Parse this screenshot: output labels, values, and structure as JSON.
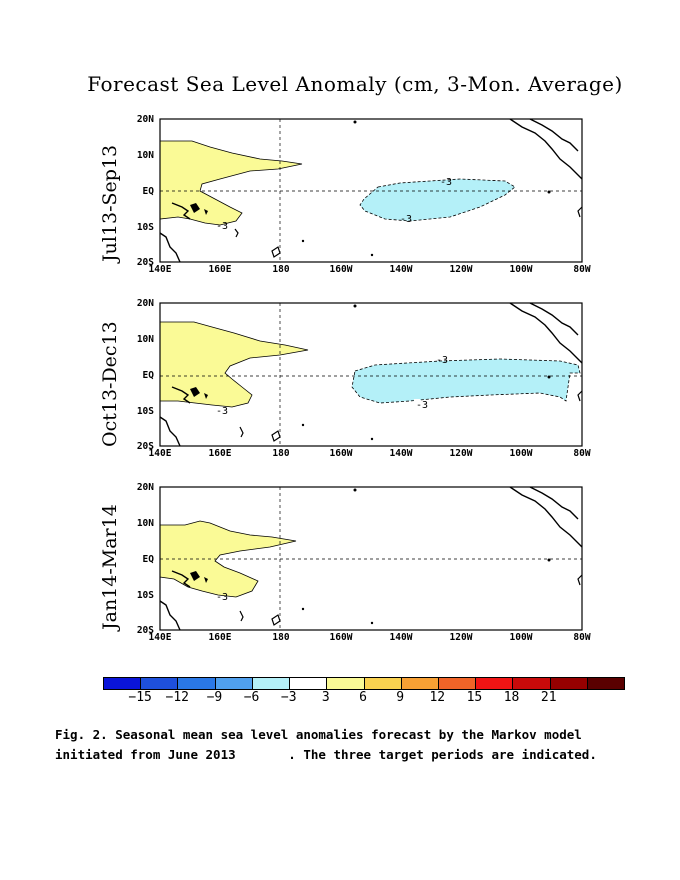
{
  "title": "Forecast Sea Level Anomaly (cm, 3-Mon. Average)",
  "y_ticks": [
    "20N",
    "10N",
    "EQ",
    "10S",
    "20S"
  ],
  "x_ticks": [
    "140E",
    "160E",
    "180",
    "160W",
    "140W",
    "120W",
    "100W",
    "80W"
  ],
  "panels": [
    {
      "label": "Jul13-Sep13"
    },
    {
      "label": "Oct13-Dec13"
    },
    {
      "label": "Jan14-Mar14"
    }
  ],
  "contour_label": "-3",
  "colorbar": {
    "colors": [
      "#0a14d8",
      "#1e50dc",
      "#2a78e6",
      "#50a0ee",
      "#b4f0f8",
      "#ffffff",
      "#fafa96",
      "#fad250",
      "#f7a034",
      "#f06428",
      "#f01414",
      "#c80a0a",
      "#960000",
      "#5a0000"
    ],
    "labels": [
      "-15",
      "-12",
      "-9",
      "-6",
      "-3",
      "3",
      "6",
      "9",
      "12",
      "15",
      "18",
      "21"
    ]
  },
  "caption": {
    "line1": "Fig. 2. Seasonal mean sea level anomalies forecast by the Markov model",
    "line2": "initiated from June 2013       . The three target periods are indicated."
  }
}
